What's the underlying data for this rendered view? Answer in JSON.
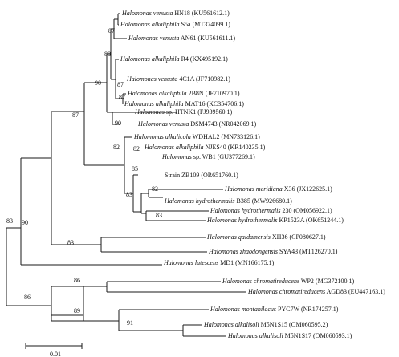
{
  "tree": {
    "taxa": [
      {
        "id": "t1",
        "species": "Halomonas venusta",
        "strain": "HN18",
        "accession": "(KU561612.1)"
      },
      {
        "id": "t2",
        "species": "Halomonas alkaliphila",
        "strain": "S5a",
        "accession": "(MT374099.1)"
      },
      {
        "id": "t3",
        "species": "Halomonas venusta",
        "strain": "AN61",
        "accession": "(KU561611.1)"
      },
      {
        "id": "t4",
        "species": "Halomonas alkaliphila",
        "strain": "R4",
        "accession": "(KX495192.1)"
      },
      {
        "id": "t5",
        "species": "Halomonas venusta",
        "strain": "4C1A",
        "accession": "(JF710982.1)"
      },
      {
        "id": "t6",
        "species": "Halomonas alkaliphila",
        "strain": "2B8N",
        "accession": "(JF710970.1)"
      },
      {
        "id": "t7",
        "species": "Halomonas alkaliphila",
        "strain": "MAT16",
        "accession": "(KC354706.1)"
      },
      {
        "id": "t8",
        "species": "Halomonas",
        "strain": "sp. HTNK1",
        "accession": "(FJ939560.1)"
      },
      {
        "id": "t9",
        "species": "Halomonas venusta",
        "strain": "DSM4743",
        "accession": "(NR042069.1)"
      },
      {
        "id": "t10",
        "species": "Halomonas alkalicola",
        "strain": "WDHAL2",
        "accession": "(MN733126.1)"
      },
      {
        "id": "t11",
        "species": "Halomonas alkaliphila",
        "strain": "NJES40",
        "accession": "(KR140235.1)"
      },
      {
        "id": "t12",
        "species": "Halomonas",
        "strain": "sp. WB1",
        "accession": "(GU377269.1)"
      },
      {
        "id": "t13",
        "species": "",
        "strain": "Strain ZB109",
        "accession": "(OR651760.1)"
      },
      {
        "id": "t14",
        "species": "Halomonas meridiana",
        "strain": "X36",
        "accession": "(JX122625.1)"
      },
      {
        "id": "t15",
        "species": "Halomonas hydrothermalis",
        "strain": "B385",
        "accession": "(MW926680.1)"
      },
      {
        "id": "t16",
        "species": "Halomonas hydrothermalis",
        "strain": "230",
        "accession": "(OM056922.1)"
      },
      {
        "id": "t17",
        "species": "Halomonas hydrothermalis",
        "strain": "KP1523A",
        "accession": "(OK651244.1)"
      },
      {
        "id": "t18",
        "species": "Halomonas qaidamensis",
        "strain": "XH36",
        "accession": "(CP080627.1)"
      },
      {
        "id": "t19",
        "species": "Halomonas zhaodongensis",
        "strain": "SYA43",
        "accession": "(MT126270.1)"
      },
      {
        "id": "t20",
        "species": "Halomonas lutescens",
        "strain": "MD1",
        "accession": "(MN166175.1)"
      },
      {
        "id": "t21",
        "species": "Halomonas chromatireducens",
        "strain": "WP2",
        "accession": "(MG372100.1)"
      },
      {
        "id": "t22",
        "species": "Halomonas chromatireducens",
        "strain": "AGD83",
        "accession": "(EU447163.1)"
      },
      {
        "id": "t23",
        "species": "Halomonas montanilacus",
        "strain": "PYC7W",
        "accession": "(NR174257.1)"
      },
      {
        "id": "t24",
        "species": "Halomonas alkalisoli",
        "strain": "M5N1S15",
        "accession": "(OM060595.2)"
      },
      {
        "id": "t25",
        "species": "Halomonas alkalisoli",
        "strain": "M5N1S17",
        "accession": "(OM060593.1)"
      }
    ],
    "bootstrap": [
      {
        "id": "b87a",
        "value": "87"
      },
      {
        "id": "b88",
        "value": "88"
      },
      {
        "id": "b90a",
        "value": "90"
      },
      {
        "id": "b87b",
        "value": "87"
      },
      {
        "id": "b87c",
        "value": "87"
      },
      {
        "id": "b90b",
        "value": "90"
      },
      {
        "id": "b87d",
        "value": "87"
      },
      {
        "id": "b82a",
        "value": "82"
      },
      {
        "id": "b82b",
        "value": "82"
      },
      {
        "id": "b85",
        "value": "85"
      },
      {
        "id": "b83a",
        "value": "83"
      },
      {
        "id": "b82c",
        "value": "82"
      },
      {
        "id": "b83b",
        "value": "83"
      },
      {
        "id": "b90c",
        "value": "90"
      },
      {
        "id": "b83c",
        "value": "83"
      },
      {
        "id": "b83d",
        "value": "83"
      },
      {
        "id": "b86a",
        "value": "86"
      },
      {
        "id": "b86b",
        "value": "86"
      },
      {
        "id": "b89",
        "value": "89"
      },
      {
        "id": "b91",
        "value": "91"
      }
    ],
    "scale_bar_label": "0.01"
  }
}
